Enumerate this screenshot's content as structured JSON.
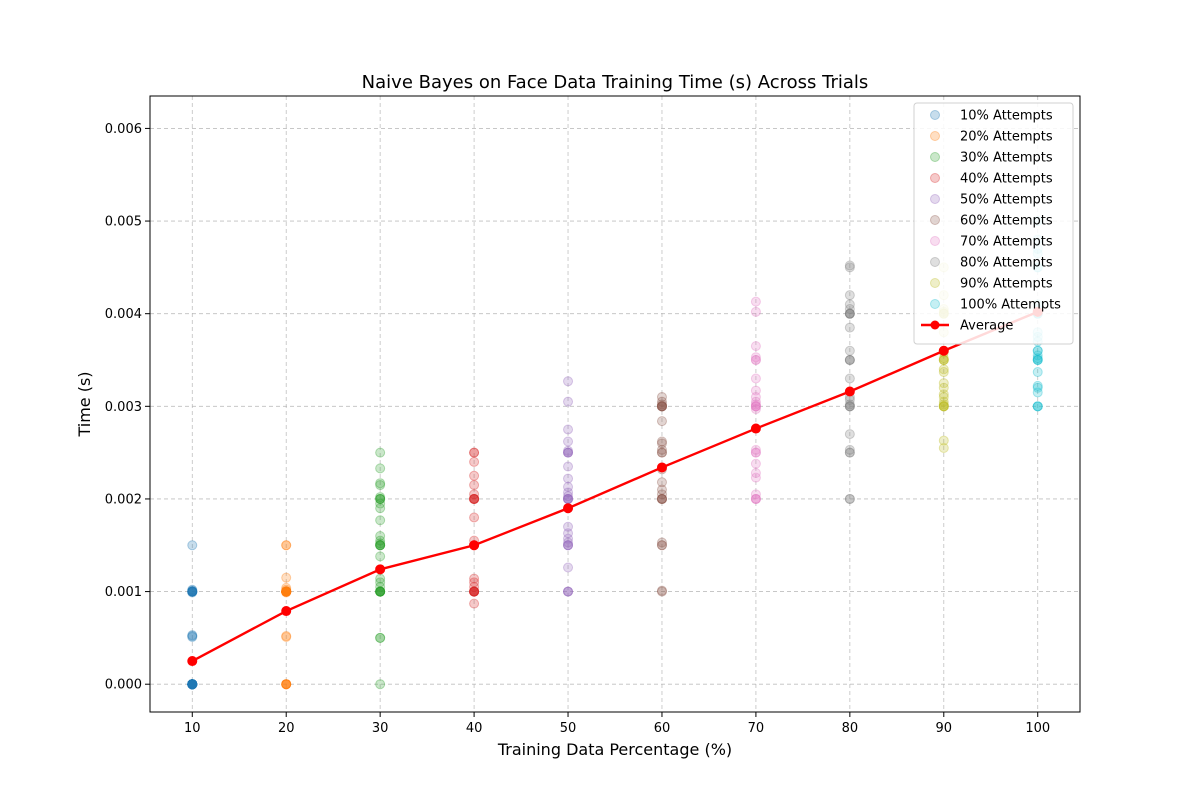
{
  "chart_data": {
    "type": "scatter",
    "title": "Naive Bayes on Face Data Training Time (s) Across Trials",
    "xlabel": "Training Data Percentage (%)",
    "ylabel": "Time (s)",
    "x_ticks": [
      10,
      20,
      30,
      40,
      50,
      60,
      70,
      80,
      90,
      100
    ],
    "y_ticks": [
      0.0,
      0.001,
      0.002,
      0.003,
      0.004,
      0.005,
      0.006
    ],
    "y_tick_labels": [
      "0.000",
      "0.001",
      "0.002",
      "0.003",
      "0.004",
      "0.005",
      "0.006"
    ],
    "xlim": [
      5.5,
      104.5
    ],
    "ylim": [
      -0.0003,
      0.00635
    ],
    "grid": true,
    "legend_placement": "top-right",
    "series": [
      {
        "name": "10% Attempts",
        "color": "#1f77b4",
        "x": 10,
        "values": [
          0.0,
          0.0,
          0.0,
          0.0,
          0.0,
          0.0,
          0.0,
          0.0,
          0.0,
          0.0,
          0.0,
          0.0,
          0.0,
          0.0,
          0.0,
          0.0,
          0.0,
          0.0,
          0.0,
          0.0,
          0.0,
          0.0,
          0.0,
          0.0,
          0.0,
          0.0,
          0.0,
          0.0,
          0.0,
          0.0,
          0.0,
          0.0,
          0.0,
          0.0,
          0.0,
          0.0,
          0.0,
          0.0,
          0.0,
          0.0,
          0.00051,
          0.00053,
          0.00052,
          0.001,
          0.001,
          0.001,
          0.001,
          0.001,
          0.001,
          0.00102,
          0.00101,
          0.00099,
          0.0015
        ]
      },
      {
        "name": "20% Attempts",
        "color": "#ff7f0e",
        "x": 20,
        "values": [
          0.0,
          0.0,
          0.0,
          0.0,
          0.0,
          0.0,
          0.00051,
          0.00052,
          0.001,
          0.001,
          0.001,
          0.001,
          0.001,
          0.001,
          0.001,
          0.001,
          0.001,
          0.001,
          0.001,
          0.001,
          0.001,
          0.001,
          0.001,
          0.001,
          0.001,
          0.001,
          0.001,
          0.001,
          0.001,
          0.001,
          0.001,
          0.001,
          0.00102,
          0.00104,
          0.00099,
          0.00115,
          0.0015,
          0.0015
        ]
      },
      {
        "name": "30% Attempts",
        "color": "#2ca02c",
        "x": 30,
        "values": [
          0.0,
          0.0005,
          0.0005,
          0.001,
          0.001,
          0.001,
          0.001,
          0.001,
          0.001,
          0.001,
          0.00105,
          0.0011,
          0.00114,
          0.00138,
          0.0015,
          0.0015,
          0.0015,
          0.0015,
          0.00152,
          0.00155,
          0.0016,
          0.00177,
          0.0019,
          0.00195,
          0.002,
          0.002,
          0.002,
          0.00202,
          0.00215,
          0.00217,
          0.00233,
          0.0025
        ]
      },
      {
        "name": "40% Attempts",
        "color": "#d62728",
        "x": 40,
        "values": [
          0.00087,
          0.001,
          0.001,
          0.001,
          0.001,
          0.001,
          0.001,
          0.001,
          0.00105,
          0.0011,
          0.00114,
          0.0015,
          0.0015,
          0.0015,
          0.00155,
          0.0018,
          0.002,
          0.002,
          0.002,
          0.002,
          0.002,
          0.00205,
          0.00215,
          0.00225,
          0.0024,
          0.0025,
          0.0025
        ]
      },
      {
        "name": "50% Attempts",
        "color": "#9467bd",
        "x": 50,
        "values": [
          0.001,
          0.001,
          0.001,
          0.00126,
          0.0015,
          0.0015,
          0.0015,
          0.00153,
          0.00157,
          0.00163,
          0.0017,
          0.0019,
          0.002,
          0.002,
          0.002,
          0.002,
          0.00203,
          0.00207,
          0.00213,
          0.00222,
          0.00235,
          0.0025,
          0.0025,
          0.0025,
          0.00252,
          0.00262,
          0.00275,
          0.00305,
          0.00327
        ]
      },
      {
        "name": "60% Attempts",
        "color": "#8c564b",
        "x": 60,
        "values": [
          0.001,
          0.00101,
          0.0015,
          0.0015,
          0.00153,
          0.002,
          0.002,
          0.002,
          0.002,
          0.00205,
          0.0021,
          0.00218,
          0.00232,
          0.0025,
          0.0025,
          0.00253,
          0.0026,
          0.00262,
          0.00284,
          0.003,
          0.003,
          0.003,
          0.003,
          0.003,
          0.00302,
          0.00305,
          0.0031
        ]
      },
      {
        "name": "70% Attempts",
        "color": "#e377c2",
        "x": 70,
        "values": [
          0.002,
          0.002,
          0.002,
          0.00205,
          0.00223,
          0.00228,
          0.00238,
          0.0025,
          0.0025,
          0.00253,
          0.00297,
          0.003,
          0.003,
          0.003,
          0.00302,
          0.00305,
          0.0031,
          0.00317,
          0.0033,
          0.0035,
          0.0035,
          0.00353,
          0.00365,
          0.00402,
          0.00413
        ]
      },
      {
        "name": "80% Attempts",
        "color": "#7f7f7f",
        "x": 80,
        "values": [
          0.002,
          0.002,
          0.0025,
          0.0025,
          0.00253,
          0.0027,
          0.003,
          0.003,
          0.003,
          0.00302,
          0.00307,
          0.0031,
          0.0033,
          0.0035,
          0.0035,
          0.0035,
          0.0036,
          0.00385,
          0.004,
          0.004,
          0.004,
          0.004,
          0.00405,
          0.0041,
          0.0042,
          0.0045,
          0.00452
        ]
      },
      {
        "name": "90% Attempts",
        "color": "#bcbd22",
        "x": 90,
        "values": [
          0.00255,
          0.00263,
          0.003,
          0.003,
          0.003,
          0.003,
          0.00302,
          0.00305,
          0.0031,
          0.00313,
          0.0032,
          0.00325,
          0.00337,
          0.0034,
          0.0035,
          0.0035,
          0.0035,
          0.00352,
          0.00358,
          0.0036,
          0.0038,
          0.004,
          0.004,
          0.004,
          0.00402,
          0.00405,
          0.0042,
          0.0045
        ]
      },
      {
        "name": "100% Attempts",
        "color": "#17becf",
        "x": 100,
        "values": [
          0.003,
          0.003,
          0.003,
          0.00315,
          0.0032,
          0.00322,
          0.00337,
          0.0035,
          0.0035,
          0.0035,
          0.00352,
          0.00355,
          0.0036,
          0.0036,
          0.0037,
          0.00375,
          0.0038,
          0.004,
          0.004,
          0.004,
          0.00405,
          0.0041,
          0.0045,
          0.0045,
          0.00465,
          0.0047,
          0.0048,
          0.005
        ]
      }
    ],
    "average": {
      "name": "Average",
      "color": "#ff0000",
      "x": [
        10,
        20,
        30,
        40,
        50,
        60,
        70,
        80,
        90,
        100
      ],
      "y": [
        0.00025,
        0.00079,
        0.00124,
        0.0015,
        0.0019,
        0.00234,
        0.00276,
        0.00316,
        0.0036,
        0.00402
      ]
    }
  }
}
